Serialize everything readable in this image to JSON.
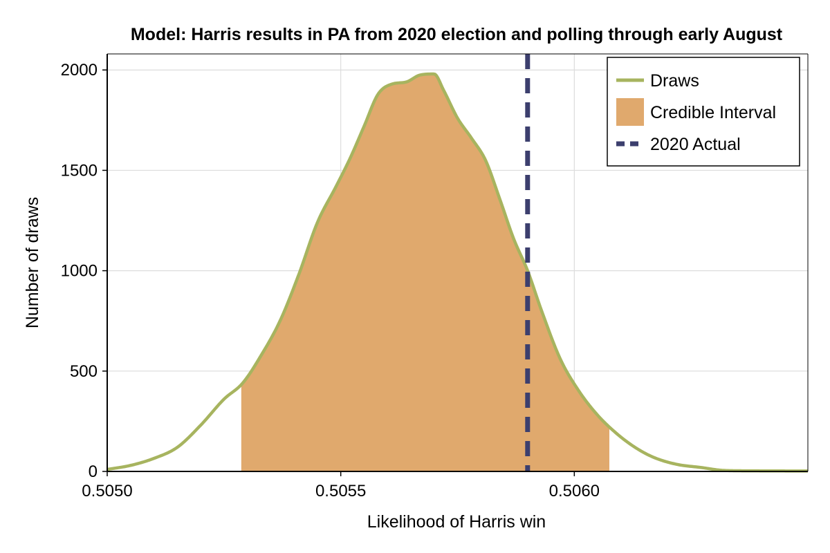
{
  "chart_data": {
    "type": "area",
    "title": "Model: Harris results in PA from 2020 election and polling through early August",
    "xlabel": "Likelihood of Harris win",
    "ylabel": "Number of draws",
    "xlim": [
      0.505,
      0.5065
    ],
    "ylim": [
      0,
      2080
    ],
    "x_ticks": [
      0.505,
      0.5055,
      0.506
    ],
    "x_tick_labels": [
      "0.5050",
      "0.5055",
      "0.5060"
    ],
    "y_ticks": [
      0,
      500,
      1000,
      1500,
      2000
    ],
    "y_tick_labels": [
      "0",
      "500",
      "1000",
      "1500",
      "2000"
    ],
    "grid": true,
    "legend_position": "top-right",
    "series": [
      {
        "name": "Draws",
        "color": "#a7b45f",
        "x": [
          0.505,
          0.50505,
          0.5051,
          0.50515,
          0.5052,
          0.50525,
          0.50529,
          0.50533,
          0.50537,
          0.50541,
          0.50545,
          0.50549,
          0.50552,
          0.50555,
          0.50558,
          0.50561,
          0.50564,
          0.50567,
          0.5057,
          0.50572,
          0.50575,
          0.50578,
          0.50581,
          0.50584,
          0.50587,
          0.5059,
          0.50593,
          0.50597,
          0.50601,
          0.50605,
          0.50609,
          0.50613,
          0.50617,
          0.50622,
          0.50627,
          0.50632,
          0.50638,
          0.5065
        ],
        "y": [
          10,
          30,
          65,
          120,
          230,
          360,
          440,
          580,
          750,
          980,
          1240,
          1420,
          1560,
          1720,
          1880,
          1930,
          1940,
          1975,
          1980,
          1900,
          1760,
          1660,
          1550,
          1360,
          1160,
          1000,
          800,
          560,
          400,
          280,
          190,
          120,
          70,
          35,
          20,
          5,
          3,
          2
        ]
      },
      {
        "name": "Credible Interval",
        "color": "#e0a96d",
        "x_range": [
          0.505287,
          0.506075
        ]
      },
      {
        "name": "2020 Actual",
        "color": "#3c3f6e",
        "x": 0.5059
      }
    ]
  }
}
